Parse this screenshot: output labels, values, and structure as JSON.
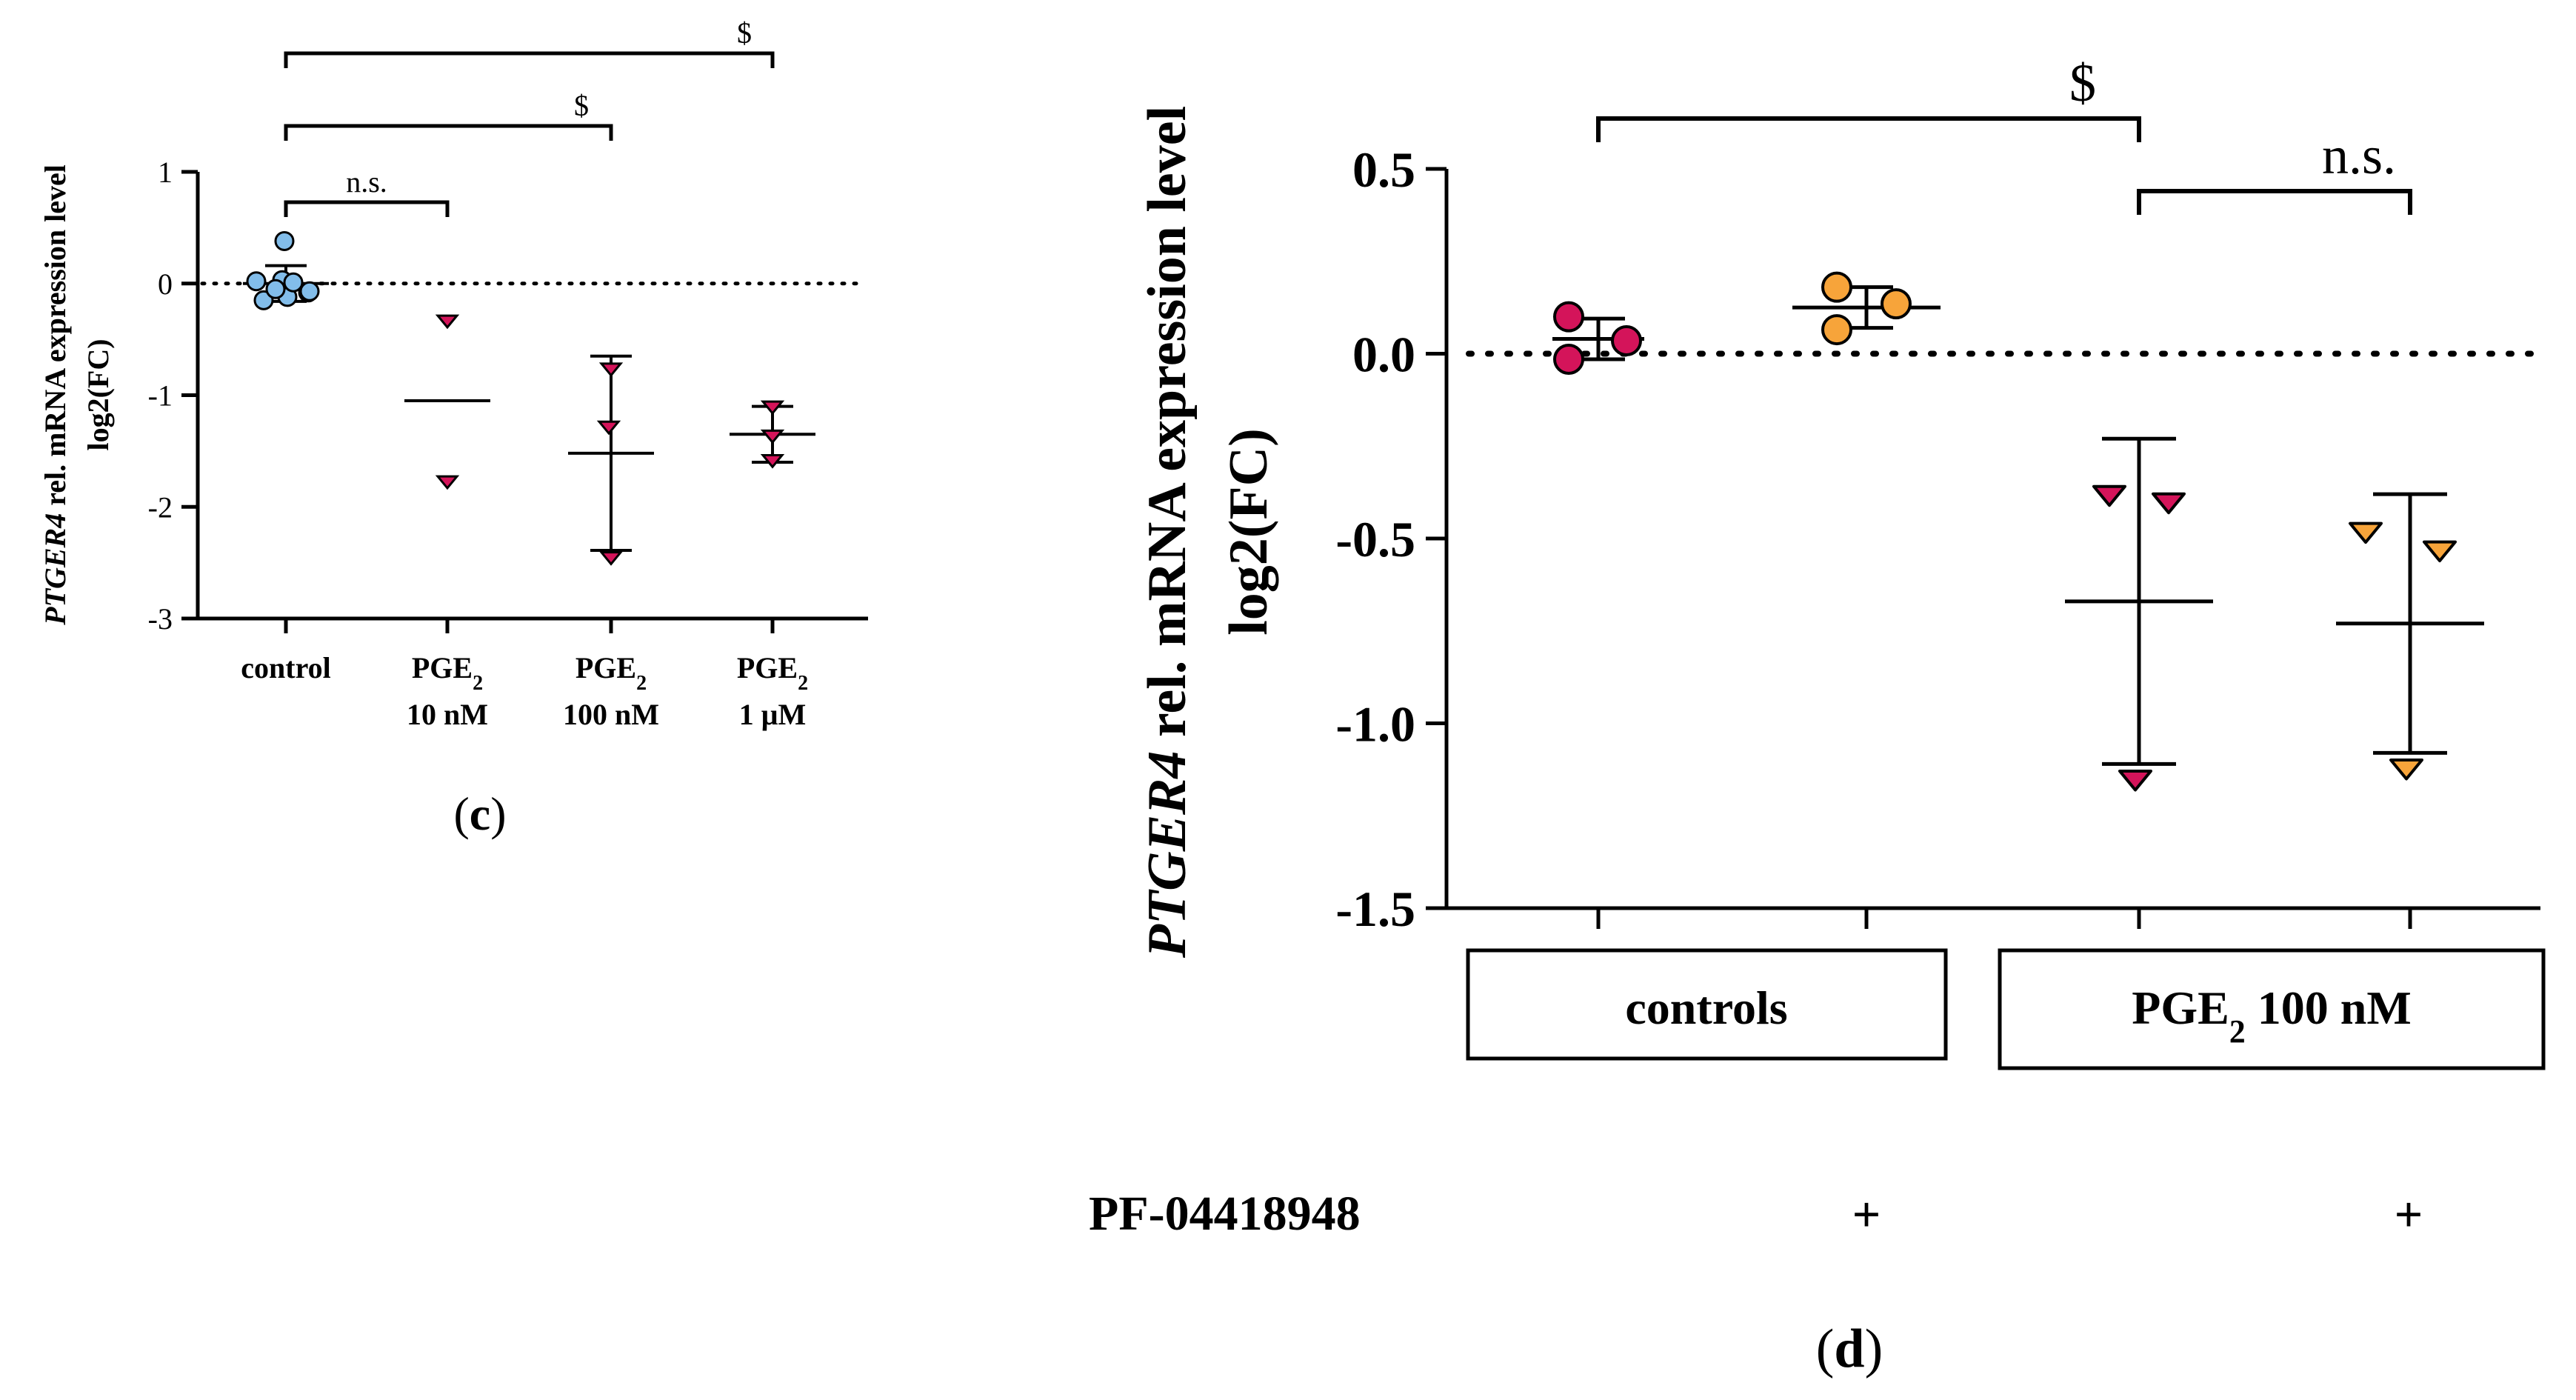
{
  "colors": {
    "control": "#82bdea",
    "pge2": "#d4145a",
    "pge2_inhibitor": "#f7a43a"
  },
  "chart_data": [
    {
      "type": "scatter",
      "panel_label": "c",
      "ylabel_italic": "PTGER4",
      "ylabel_rest": " rel. mRNA expression level",
      "ylabel_line2": "log2(FC)",
      "ylim": [
        -3,
        1
      ],
      "yticks": [
        1,
        0,
        -1,
        -2,
        -3
      ],
      "reference_line": 0,
      "categories": [
        {
          "lines": [
            "control"
          ]
        },
        {
          "lines": [
            "PGE",
            "10 nM"
          ],
          "sub": "2"
        },
        {
          "lines": [
            "PGE",
            "100 nM"
          ],
          "sub": "2"
        },
        {
          "lines": [
            "PGE",
            "1 μM"
          ],
          "sub": "2"
        }
      ],
      "series": [
        {
          "name": "control",
          "marker": "circle",
          "color": "control",
          "values": [
            0.38,
            0.02,
            0.03,
            -0.08,
            -0.15,
            -0.12,
            -0.07,
            -0.05,
            0.01
          ],
          "mean": 0.0,
          "sd": 0.16
        },
        {
          "name": "PGE2 10 nM",
          "marker": "triangle",
          "color": "pge2",
          "values": [
            -0.33,
            -1.77
          ],
          "mean": -1.05,
          "sd": null
        },
        {
          "name": "PGE2 100 nM",
          "marker": "triangle",
          "color": "pge2",
          "values": [
            -0.76,
            -1.28,
            -2.45
          ],
          "mean": -1.52,
          "sd": 0.87
        },
        {
          "name": "PGE2 1 μM",
          "marker": "triangle",
          "color": "pge2",
          "values": [
            -1.1,
            -1.36,
            -1.58
          ],
          "mean": -1.35,
          "sd": 0.25
        }
      ],
      "significance": [
        {
          "from": 0,
          "to": 1,
          "label": "n.s."
        },
        {
          "from": 0,
          "to": 2,
          "label": "$"
        },
        {
          "from": 0,
          "to": 3,
          "label": "$"
        }
      ]
    },
    {
      "type": "scatter",
      "panel_label": "d",
      "ylabel_italic": "PTGER4",
      "ylabel_rest": " rel. mRNA expression level",
      "ylabel_line2": "log2(FC)",
      "ylim": [
        -1.5,
        0.5
      ],
      "yticks": [
        0.5,
        0.0,
        -0.5,
        -1.0,
        -1.5
      ],
      "ytick_labels": [
        "0.5",
        "0.0",
        "-0.5",
        "-1.0",
        "-1.5"
      ],
      "reference_line": 0,
      "groups": [
        {
          "label": "controls",
          "columns": [
            0,
            1
          ]
        },
        {
          "label_main": "PGE",
          "label_sub": "2",
          "label_rest": " 100 nM",
          "columns": [
            2,
            3
          ]
        }
      ],
      "inhibitor": {
        "label": "PF-04418948",
        "marks": [
          "",
          "+",
          "",
          "+"
        ]
      },
      "series": [
        {
          "name": "control",
          "marker": "circle",
          "color": "pge2",
          "values": [
            0.1,
            0.035,
            -0.015
          ],
          "mean": 0.04,
          "sd": 0.055
        },
        {
          "name": "control + PF-04418948",
          "marker": "circle",
          "color": "pge2_inhibitor",
          "values": [
            0.18,
            0.135,
            0.065
          ],
          "mean": 0.125,
          "sd": 0.055
        },
        {
          "name": "PGE2 100 nM",
          "marker": "triangle",
          "color": "pge2",
          "values": [
            -0.38,
            -0.4,
            -1.15
          ],
          "mean": -0.67,
          "sd": 0.44
        },
        {
          "name": "PGE2 100 nM + PF-04418948",
          "marker": "triangle",
          "color": "pge2_inhibitor",
          "values": [
            -0.48,
            -0.53,
            -1.12
          ],
          "mean": -0.73,
          "sd": 0.35
        }
      ],
      "significance": [
        {
          "from": 0,
          "to": 2,
          "label": "$"
        },
        {
          "from": 2,
          "to": 3,
          "label": "n.s."
        }
      ]
    }
  ]
}
